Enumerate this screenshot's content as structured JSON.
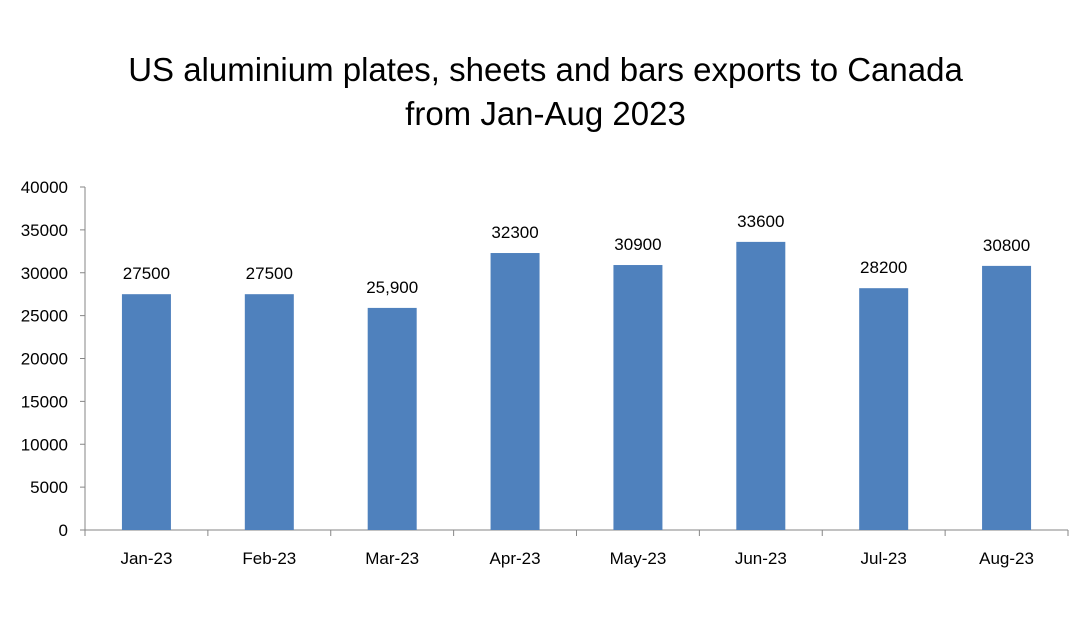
{
  "chart_data": {
    "type": "bar",
    "title_lines": [
      "US aluminium plates, sheets and bars exports to Canada",
      "from Jan-Aug 2023"
    ],
    "categories": [
      "Jan-23",
      "Feb-23",
      "Mar-23",
      "Apr-23",
      "May-23",
      "Jun-23",
      "Jul-23",
      "Aug-23"
    ],
    "values": [
      27500,
      27500,
      25900,
      32300,
      30900,
      33600,
      28200,
      30800
    ],
    "data_labels": [
      "27500",
      "27500",
      "25,900",
      "32300",
      "30900",
      "33600",
      "28200",
      "30800"
    ],
    "xlabel": "",
    "ylabel": "",
    "ylim": [
      0,
      40000
    ],
    "yticks": [
      0,
      5000,
      10000,
      15000,
      20000,
      25000,
      30000,
      35000,
      40000
    ],
    "ytick_labels": [
      "0",
      "5000",
      "10000",
      "15000",
      "20000",
      "25000",
      "30000",
      "35000",
      "40000"
    ],
    "grid": false,
    "legend": "none",
    "bar_color": "#4f81bd",
    "axis_color": "#868686"
  }
}
